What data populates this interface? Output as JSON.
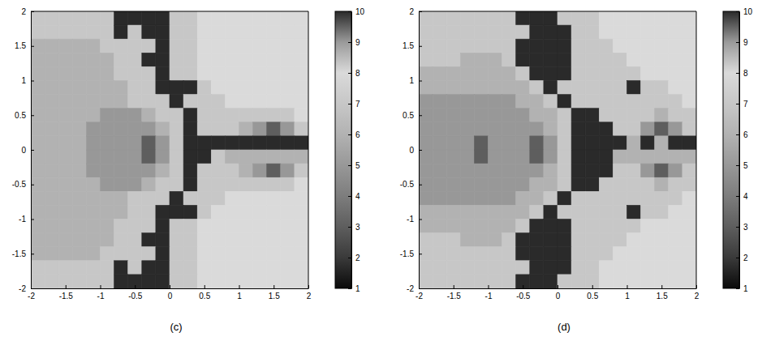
{
  "chart_data": [
    {
      "type": "heatmap",
      "title": "(c)",
      "xlim": [
        -2,
        2
      ],
      "ylim": [
        -2,
        2
      ],
      "xticks": [
        -2,
        -1.5,
        -1,
        -0.5,
        0,
        0.5,
        1,
        1.5,
        2
      ],
      "yticks": [
        -2,
        -1.5,
        -1,
        -0.5,
        0,
        0.5,
        1,
        1.5,
        2
      ],
      "zlim": [
        1,
        10
      ],
      "zticks": [
        1,
        2,
        3,
        4,
        5,
        6,
        7,
        8,
        9,
        10
      ],
      "x": [
        -1.9,
        -1.7,
        -1.5,
        -1.3,
        -1.1,
        -0.9,
        -0.7,
        -0.5,
        -0.3,
        -0.1,
        0.1,
        0.3,
        0.5,
        0.7,
        0.9,
        1.1,
        1.3,
        1.5,
        1.7,
        1.9
      ],
      "y": [
        1.9,
        1.7,
        1.5,
        1.3,
        1.1,
        0.9,
        0.7,
        0.5,
        0.3,
        0.1,
        -0.1,
        -0.3,
        -0.5,
        -0.7,
        -0.9,
        -1.1,
        -1.3,
        -1.5,
        -1.7,
        -1.9
      ],
      "z": [
        [
          7,
          7,
          7,
          7,
          7,
          7,
          10,
          10,
          10,
          10,
          7,
          7,
          8,
          8,
          8,
          8,
          8,
          8,
          8,
          8
        ],
        [
          7,
          7,
          7,
          7,
          7,
          7,
          10,
          7,
          10,
          10,
          7,
          7,
          8,
          8,
          8,
          8,
          8,
          8,
          8,
          8
        ],
        [
          6,
          6,
          6,
          6,
          6,
          7,
          7,
          7,
          7,
          10,
          7,
          7,
          8,
          8,
          8,
          8,
          8,
          8,
          8,
          8
        ],
        [
          6,
          6,
          6,
          6,
          6,
          6,
          7,
          7,
          10,
          10,
          7,
          7,
          8,
          8,
          8,
          8,
          8,
          8,
          8,
          8
        ],
        [
          6,
          6,
          6,
          6,
          6,
          6,
          7,
          7,
          7,
          10,
          7,
          7,
          8,
          8,
          8,
          8,
          8,
          8,
          8,
          8
        ],
        [
          6,
          6,
          6,
          6,
          6,
          6,
          6,
          7,
          7,
          10,
          10,
          10,
          7,
          8,
          8,
          8,
          8,
          8,
          8,
          8
        ],
        [
          6,
          6,
          6,
          6,
          6,
          6,
          6,
          7,
          7,
          7,
          10,
          7,
          7,
          7,
          8,
          8,
          8,
          8,
          8,
          8
        ],
        [
          6,
          6,
          6,
          6,
          6,
          5,
          5,
          5,
          6,
          7,
          7,
          10,
          7,
          7,
          7,
          7,
          7,
          7,
          7,
          8
        ],
        [
          6,
          6,
          6,
          6,
          5,
          5,
          5,
          5,
          5,
          6,
          7,
          10,
          7,
          7,
          7,
          6,
          5,
          3,
          5,
          7
        ],
        [
          6,
          6,
          6,
          6,
          5,
          5,
          5,
          5,
          3,
          5,
          7,
          10,
          10,
          10,
          10,
          10,
          10,
          10,
          10,
          10
        ],
        [
          6,
          6,
          6,
          6,
          5,
          5,
          5,
          5,
          3,
          5,
          7,
          10,
          10,
          7,
          6,
          6,
          6,
          6,
          6,
          6
        ],
        [
          6,
          6,
          6,
          6,
          5,
          5,
          5,
          5,
          5,
          6,
          7,
          10,
          7,
          7,
          7,
          6,
          5,
          3,
          5,
          7
        ],
        [
          6,
          6,
          6,
          6,
          6,
          5,
          5,
          5,
          6,
          7,
          7,
          10,
          7,
          7,
          7,
          7,
          7,
          7,
          7,
          8
        ],
        [
          6,
          6,
          6,
          6,
          6,
          6,
          6,
          7,
          7,
          7,
          10,
          7,
          7,
          7,
          8,
          8,
          8,
          8,
          8,
          8
        ],
        [
          6,
          6,
          6,
          6,
          6,
          6,
          6,
          7,
          7,
          10,
          10,
          10,
          7,
          8,
          8,
          8,
          8,
          8,
          8,
          8
        ],
        [
          6,
          6,
          6,
          6,
          6,
          6,
          7,
          7,
          7,
          10,
          7,
          7,
          8,
          8,
          8,
          8,
          8,
          8,
          8,
          8
        ],
        [
          6,
          6,
          6,
          6,
          6,
          6,
          7,
          7,
          10,
          10,
          7,
          7,
          8,
          8,
          8,
          8,
          8,
          8,
          8,
          8
        ],
        [
          6,
          6,
          6,
          6,
          6,
          7,
          7,
          7,
          7,
          10,
          7,
          7,
          8,
          8,
          8,
          8,
          8,
          8,
          8,
          8
        ],
        [
          7,
          7,
          7,
          7,
          7,
          7,
          10,
          7,
          10,
          10,
          7,
          7,
          8,
          8,
          8,
          8,
          8,
          8,
          8,
          8
        ],
        [
          7,
          7,
          7,
          7,
          7,
          7,
          10,
          10,
          10,
          10,
          7,
          7,
          8,
          8,
          8,
          8,
          8,
          8,
          8,
          8
        ]
      ]
    },
    {
      "type": "heatmap",
      "title": "(d)",
      "xlim": [
        -2,
        2
      ],
      "ylim": [
        -2,
        2
      ],
      "xticks": [
        -2,
        -1.5,
        -1,
        -0.5,
        0,
        0.5,
        1,
        1.5,
        2
      ],
      "yticks": [
        -2,
        -1.5,
        -1,
        -0.5,
        0,
        0.5,
        1,
        1.5,
        2
      ],
      "zlim": [
        1,
        10
      ],
      "zticks": [
        1,
        2,
        3,
        4,
        5,
        6,
        7,
        8,
        9,
        10
      ],
      "x": [
        -1.9,
        -1.7,
        -1.5,
        -1.3,
        -1.1,
        -0.9,
        -0.7,
        -0.5,
        -0.3,
        -0.1,
        0.1,
        0.3,
        0.5,
        0.7,
        0.9,
        1.1,
        1.3,
        1.5,
        1.7,
        1.9
      ],
      "y": [
        1.9,
        1.7,
        1.5,
        1.3,
        1.1,
        0.9,
        0.7,
        0.5,
        0.3,
        0.1,
        -0.1,
        -0.3,
        -0.5,
        -0.7,
        -0.9,
        -1.1,
        -1.3,
        -1.5,
        -1.7,
        -1.9
      ],
      "z": [
        [
          7,
          7,
          7,
          7,
          7,
          7,
          7,
          10,
          10,
          10,
          7,
          7,
          7,
          8,
          8,
          8,
          8,
          8,
          8,
          8
        ],
        [
          7,
          7,
          7,
          7,
          7,
          7,
          7,
          7,
          10,
          10,
          10,
          7,
          7,
          8,
          8,
          8,
          8,
          8,
          8,
          8
        ],
        [
          7,
          7,
          7,
          7,
          7,
          7,
          7,
          10,
          10,
          10,
          10,
          7,
          7,
          7,
          8,
          8,
          8,
          8,
          8,
          8
        ],
        [
          7,
          7,
          7,
          6,
          6,
          6,
          7,
          10,
          10,
          10,
          10,
          7,
          7,
          7,
          7,
          8,
          8,
          8,
          8,
          8
        ],
        [
          6,
          6,
          6,
          6,
          6,
          6,
          6,
          7,
          10,
          10,
          10,
          7,
          7,
          7,
          7,
          7,
          8,
          8,
          8,
          8
        ],
        [
          6,
          6,
          6,
          6,
          6,
          6,
          6,
          6,
          7,
          10,
          7,
          7,
          7,
          7,
          7,
          10,
          7,
          7,
          8,
          8
        ],
        [
          5,
          5,
          5,
          5,
          5,
          5,
          5,
          6,
          6,
          7,
          10,
          7,
          7,
          7,
          7,
          7,
          7,
          7,
          7,
          8
        ],
        [
          5,
          5,
          5,
          5,
          5,
          5,
          5,
          5,
          6,
          6,
          7,
          10,
          10,
          7,
          7,
          7,
          7,
          6,
          7,
          7
        ],
        [
          5,
          5,
          5,
          5,
          5,
          5,
          5,
          5,
          5,
          6,
          7,
          10,
          10,
          10,
          7,
          7,
          5,
          3,
          5,
          7
        ],
        [
          5,
          5,
          5,
          5,
          3,
          5,
          5,
          5,
          3,
          5,
          7,
          10,
          10,
          10,
          10,
          6,
          10,
          6,
          10,
          10
        ],
        [
          5,
          5,
          5,
          5,
          3,
          5,
          5,
          5,
          3,
          5,
          7,
          10,
          10,
          10,
          6,
          6,
          6,
          6,
          6,
          6
        ],
        [
          5,
          5,
          5,
          5,
          5,
          5,
          5,
          5,
          5,
          6,
          7,
          10,
          10,
          10,
          7,
          7,
          5,
          3,
          5,
          7
        ],
        [
          5,
          5,
          5,
          5,
          5,
          5,
          5,
          5,
          6,
          6,
          7,
          10,
          10,
          7,
          7,
          7,
          7,
          6,
          7,
          7
        ],
        [
          5,
          5,
          5,
          5,
          5,
          5,
          5,
          6,
          6,
          7,
          10,
          7,
          7,
          7,
          7,
          7,
          7,
          7,
          7,
          8
        ],
        [
          6,
          6,
          6,
          6,
          6,
          6,
          6,
          6,
          7,
          10,
          7,
          7,
          7,
          7,
          7,
          10,
          7,
          7,
          8,
          8
        ],
        [
          6,
          6,
          6,
          6,
          6,
          6,
          6,
          7,
          10,
          10,
          10,
          7,
          7,
          7,
          7,
          7,
          8,
          8,
          8,
          8
        ],
        [
          7,
          7,
          7,
          6,
          6,
          6,
          7,
          10,
          10,
          10,
          10,
          7,
          7,
          7,
          7,
          8,
          8,
          8,
          8,
          8
        ],
        [
          7,
          7,
          7,
          7,
          7,
          7,
          7,
          10,
          10,
          10,
          10,
          7,
          7,
          7,
          8,
          8,
          8,
          8,
          8,
          8
        ],
        [
          7,
          7,
          7,
          7,
          7,
          7,
          7,
          7,
          10,
          10,
          10,
          7,
          7,
          8,
          8,
          8,
          8,
          8,
          8,
          8
        ],
        [
          7,
          7,
          7,
          7,
          7,
          7,
          7,
          10,
          10,
          10,
          7,
          7,
          7,
          8,
          8,
          8,
          8,
          8,
          8,
          8
        ]
      ]
    }
  ]
}
